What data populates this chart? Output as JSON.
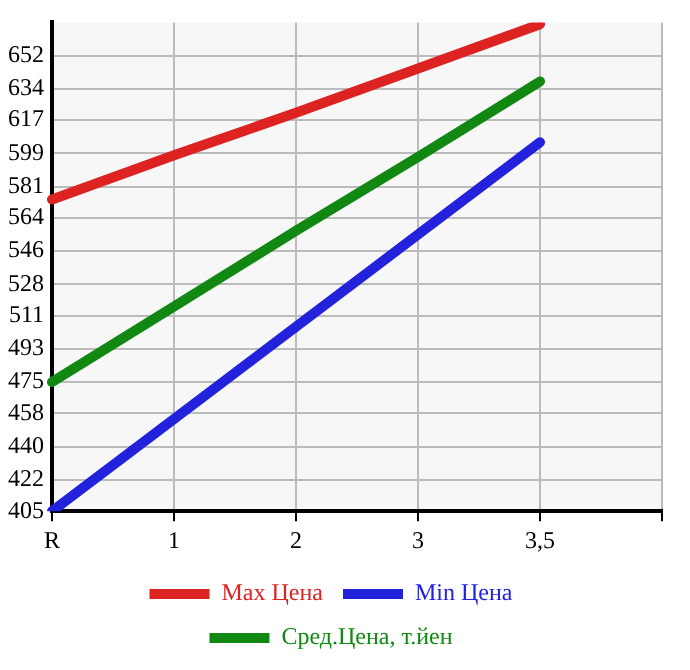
{
  "chart_data": {
    "type": "line",
    "categories": [
      "R",
      "1",
      "2",
      "3",
      "3,5",
      null
    ],
    "series": [
      {
        "name": "Max Цена",
        "color": "#dd2222",
        "values": [
          574,
          598,
          621,
          645,
          669,
          null
        ]
      },
      {
        "name": "Min Цена",
        "color": "#2222dd",
        "values": [
          405,
          455,
          505,
          555,
          605,
          null
        ]
      },
      {
        "name": "Сред.Цена, т.йен",
        "color": "#118811",
        "values": [
          475,
          516,
          557,
          597,
          638,
          null
        ]
      }
    ],
    "ylim": [
      405,
      670
    ],
    "yticks": [
      405,
      422,
      440,
      458,
      475,
      493,
      511,
      528,
      546,
      564,
      581,
      599,
      617,
      634,
      652
    ],
    "grid": true,
    "legend": "bottom",
    "marker": "none",
    "line_style": "solid"
  }
}
